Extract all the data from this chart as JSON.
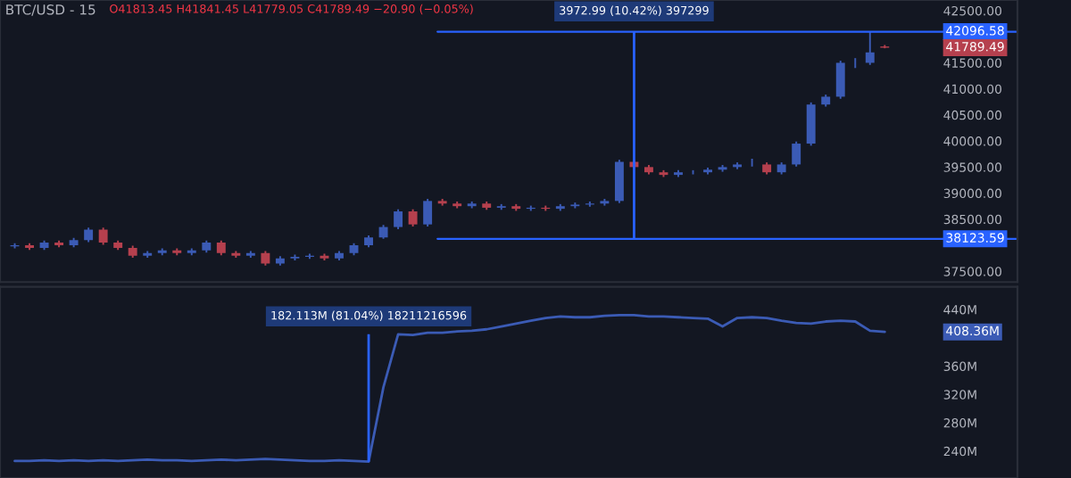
{
  "chart_data": [
    {
      "type": "candlestick",
      "title": "BTC/USD - 15",
      "categories": [
        null,
        null,
        null,
        null,
        null,
        null,
        null,
        null,
        null,
        null,
        null,
        null,
        null,
        null,
        null,
        null,
        null,
        null,
        null,
        null,
        null,
        null,
        null,
        null,
        null,
        null,
        null,
        null,
        null,
        null,
        null,
        null,
        null,
        null,
        null,
        null,
        null,
        null,
        null,
        null,
        null,
        null,
        null,
        null,
        null,
        null,
        null,
        null,
        null,
        null,
        null,
        null,
        null,
        null,
        null,
        null,
        null,
        null,
        null,
        null
      ],
      "ohlc": [
        [
          37980,
          38040,
          37940,
          38000
        ],
        [
          38000,
          38040,
          37910,
          37950
        ],
        [
          37950,
          38090,
          37910,
          38050
        ],
        [
          38050,
          38090,
          37960,
          38000
        ],
        [
          38000,
          38140,
          37960,
          38100
        ],
        [
          38100,
          38340,
          38060,
          38300
        ],
        [
          38300,
          38340,
          38010,
          38050
        ],
        [
          38050,
          38090,
          37910,
          37950
        ],
        [
          37950,
          37990,
          37760,
          37800
        ],
        [
          37800,
          37890,
          37760,
          37850
        ],
        [
          37850,
          37940,
          37810,
          37900
        ],
        [
          37900,
          37940,
          37810,
          37850
        ],
        [
          37850,
          37940,
          37810,
          37900
        ],
        [
          37900,
          38090,
          37860,
          38050
        ],
        [
          38050,
          38090,
          37810,
          37850
        ],
        [
          37850,
          37890,
          37760,
          37800
        ],
        [
          37800,
          37890,
          37760,
          37850
        ],
        [
          37850,
          37890,
          37610,
          37650
        ],
        [
          37650,
          37790,
          37610,
          37750
        ],
        [
          37750,
          37820,
          37710,
          37780
        ],
        [
          37780,
          37840,
          37740,
          37800
        ],
        [
          37800,
          37840,
          37710,
          37750
        ],
        [
          37750,
          37890,
          37710,
          37850
        ],
        [
          37850,
          38040,
          37810,
          38000
        ],
        [
          38000,
          38190,
          37960,
          38150
        ],
        [
          38150,
          38390,
          38123.59,
          38350
        ],
        [
          38350,
          38690,
          38310,
          38650
        ],
        [
          38650,
          38690,
          38360,
          38400
        ],
        [
          38400,
          38890,
          38360,
          38850
        ],
        [
          38850,
          38890,
          38760,
          38800
        ],
        [
          38800,
          38840,
          38710,
          38750
        ],
        [
          38750,
          38840,
          38710,
          38800
        ],
        [
          38800,
          38840,
          38680,
          38720
        ],
        [
          38720,
          38790,
          38680,
          38750
        ],
        [
          38750,
          38790,
          38660,
          38700
        ],
        [
          38700,
          38760,
          38660,
          38720
        ],
        [
          38720,
          38760,
          38660,
          38700
        ],
        [
          38700,
          38790,
          38660,
          38750
        ],
        [
          38750,
          38820,
          38710,
          38780
        ],
        [
          38780,
          38840,
          38740,
          38800
        ],
        [
          38800,
          38890,
          38760,
          38850
        ],
        [
          38850,
          39640,
          38810,
          39600
        ],
        [
          39600,
          39640,
          39460,
          39500
        ],
        [
          39500,
          39540,
          39360,
          39400
        ],
        [
          39400,
          39440,
          39310,
          39350
        ],
        [
          39350,
          39440,
          39310,
          39400
        ],
        [
          39400,
          39440,
          39360,
          39400
        ],
        [
          39400,
          39490,
          39360,
          39450
        ],
        [
          39450,
          39540,
          39410,
          39500
        ],
        [
          39500,
          39590,
          39460,
          39550
        ],
        [
          39550,
          39660,
          39510,
          39550
        ],
        [
          39550,
          39590,
          39360,
          39400
        ],
        [
          39400,
          39590,
          39360,
          39550
        ],
        [
          39550,
          39990,
          39510,
          39950
        ],
        [
          39950,
          40740,
          39910,
          40700
        ],
        [
          40700,
          40890,
          40660,
          40850
        ],
        [
          40850,
          41540,
          40810,
          41500
        ],
        [
          41500,
          41590,
          41400,
          41500
        ],
        [
          41500,
          42096.58,
          41460,
          41700
        ],
        [
          41813.45,
          41841.45,
          41779.05,
          41789.49
        ]
      ],
      "colors": [
        "#3b5bb5",
        "#b5404e",
        "#3b5bb5",
        "#b5404e",
        "#3b5bb5",
        "#3b5bb5",
        "#b5404e",
        "#b5404e",
        "#b5404e",
        "#3b5bb5",
        "#3b5bb5",
        "#b5404e",
        "#3b5bb5",
        "#3b5bb5",
        "#b5404e",
        "#b5404e",
        "#3b5bb5",
        "#b5404e",
        "#3b5bb5",
        "#3b5bb5",
        "#3b5bb5",
        "#b5404e",
        "#3b5bb5",
        "#3b5bb5",
        "#3b5bb5",
        "#3b5bb5",
        "#3b5bb5",
        "#b5404e",
        "#3b5bb5",
        "#b5404e",
        "#b5404e",
        "#3b5bb5",
        "#b5404e",
        "#3b5bb5",
        "#b5404e",
        "#3b5bb5",
        "#b5404e",
        "#3b5bb5",
        "#3b5bb5",
        "#3b5bb5",
        "#3b5bb5",
        "#3b5bb5",
        "#b5404e",
        "#b5404e",
        "#b5404e",
        "#3b5bb5",
        "#3b5bb5",
        "#3b5bb5",
        "#3b5bb5",
        "#3b5bb5",
        "#3b5bb5",
        "#b5404e",
        "#3b5bb5",
        "#3b5bb5",
        "#3b5bb5",
        "#3b5bb5",
        "#3b5bb5",
        "#3b5bb5",
        "#3b5bb5",
        "#b5404e"
      ],
      "ylim": [
        37295,
        42705
      ],
      "yticks": [
        {
          "value": 37500,
          "label": "37500.00"
        },
        {
          "value": 38500,
          "label": "38500.00"
        },
        {
          "value": 39000,
          "label": "39000.00"
        },
        {
          "value": 39500,
          "label": "39500.00"
        },
        {
          "value": 40000,
          "label": "40000.00"
        },
        {
          "value": 40500,
          "label": "40500.00"
        },
        {
          "value": 41000,
          "label": "41000.00"
        },
        {
          "value": 41500,
          "label": "41500.00"
        },
        {
          "value": 42500,
          "label": "42500.00"
        }
      ],
      "ref_lines": [
        {
          "axis": "y",
          "value": 42096.58,
          "label": "42096.58",
          "color": "#2962ff"
        },
        {
          "axis": "y",
          "value": 38123.59,
          "label": "38123.59",
          "color": "#2962ff"
        }
      ],
      "annotations": [
        "O41813.45 H41841.45 L41779.05 C41789.49 −20.90 (−0.05%)",
        "3972.99 (10.42%) 397299",
        "41789.49"
      ],
      "tick_labels": "y",
      "grid": false
    },
    {
      "type": "line",
      "categories": [
        null,
        null,
        null,
        null,
        null,
        null,
        null,
        null,
        null,
        null,
        null,
        null,
        null,
        null,
        null,
        null,
        null,
        null,
        null,
        null,
        null,
        null,
        null,
        null,
        null,
        null,
        null,
        null,
        null,
        null,
        null,
        null,
        null,
        null,
        null,
        null,
        null,
        null,
        null,
        null,
        null,
        null,
        null,
        null,
        null,
        null,
        null,
        null,
        null,
        null,
        null,
        null,
        null,
        null,
        null,
        null,
        null,
        null,
        null,
        null
      ],
      "series": [
        {
          "name": null,
          "color": "#3b5bb5",
          "values": [
            226,
            226,
            227,
            226,
            227,
            226,
            227,
            226,
            227,
            228,
            227,
            227,
            226,
            227,
            228,
            227,
            228,
            229,
            228,
            227,
            226,
            226,
            227,
            226,
            225,
            330,
            405,
            404,
            407,
            407,
            409,
            410,
            412,
            416,
            420,
            424,
            428,
            430,
            429,
            429,
            431,
            432,
            432,
            430,
            430,
            429,
            428,
            427,
            416,
            428,
            429,
            428,
            424,
            421,
            420,
            423,
            424,
            423,
            410,
            408.36
          ]
        }
      ],
      "ylim": [
        202,
        472
      ],
      "yticks": [
        {
          "value": 240,
          "label": "240M"
        },
        {
          "value": 280,
          "label": "280M"
        },
        {
          "value": 320,
          "label": "320M"
        },
        {
          "value": 360,
          "label": "360M"
        },
        {
          "value": 440,
          "label": "440M"
        }
      ],
      "annotations": [
        "182.113M (81.04%) 18211216596",
        "408.36M"
      ],
      "tick_labels": "y",
      "grid": false
    }
  ]
}
